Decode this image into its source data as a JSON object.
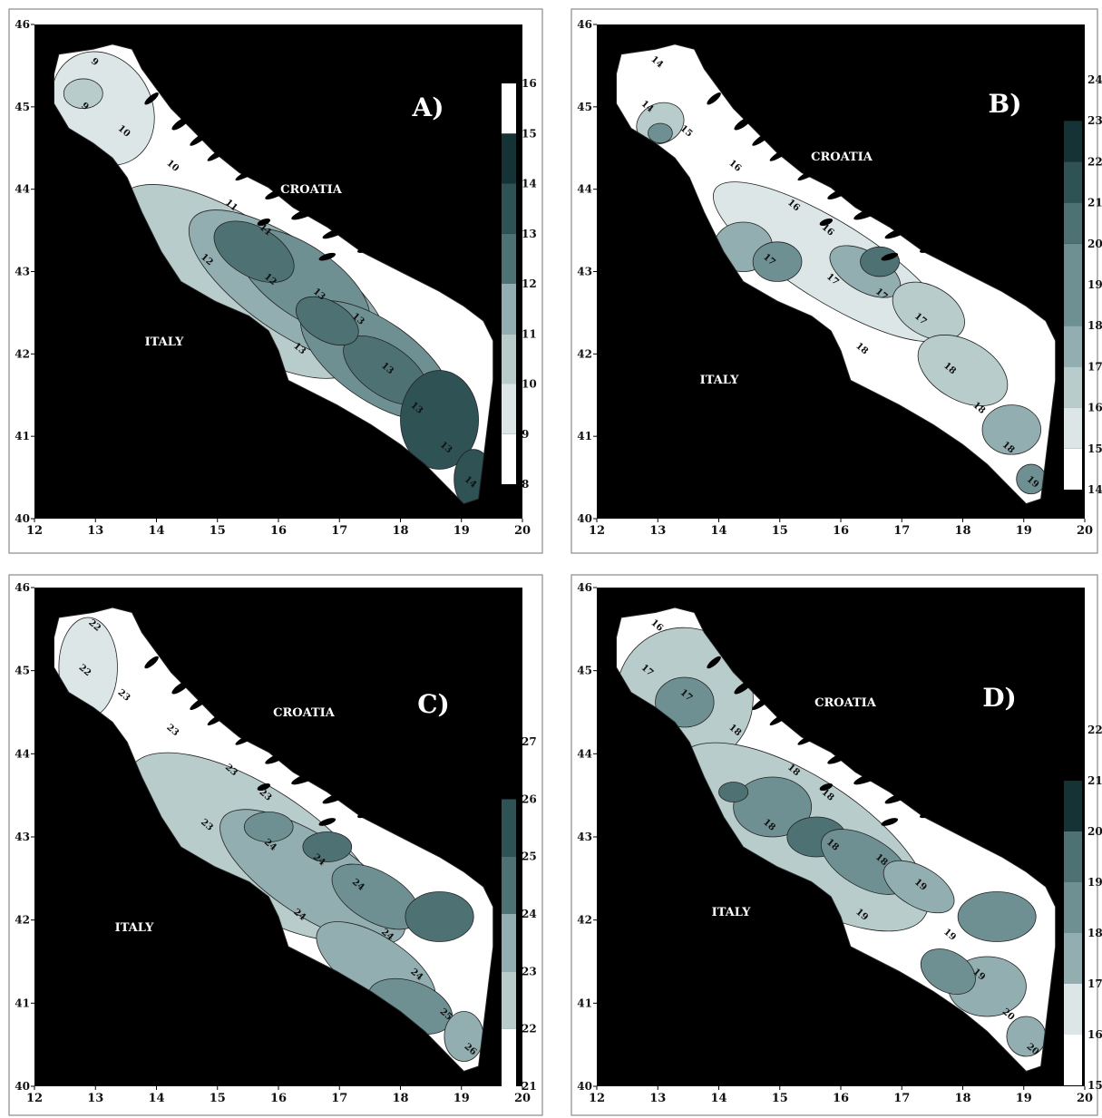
{
  "colors": {
    "land": "#000000",
    "frame": "#8a8a8a",
    "ramp": [
      "#ffffff",
      "#dce6e6",
      "#b9cccc",
      "#93aeb0",
      "#6f9093",
      "#4e7174",
      "#2f5255",
      "#153235",
      "#000000"
    ]
  },
  "x_ticks": [
    "12",
    "13",
    "14",
    "15",
    "16",
    "17",
    "18",
    "19",
    "20"
  ],
  "y_ticks": [
    "40",
    "41",
    "42",
    "43",
    "44",
    "45",
    "46"
  ],
  "panels": [
    {
      "id": "a",
      "label": "A)",
      "country_labels": {
        "croatia": "CROATIA",
        "italy": "ITALY"
      },
      "colorbar_ticks": [
        "8",
        "9",
        "10",
        "11",
        "12",
        "13",
        "14",
        "15",
        "16"
      ],
      "colorbar_note": "top value not shaded",
      "contour_labels": [
        "9",
        "9",
        "10",
        "10",
        "11",
        "11",
        "12",
        "12",
        "13",
        "13",
        "13",
        "13",
        "13",
        "13",
        "14"
      ]
    },
    {
      "id": "b",
      "label": "B)",
      "country_labels": {
        "croatia": "CROATIA",
        "italy": "ITALY"
      },
      "colorbar_ticks": [
        "14",
        "15",
        "16",
        "17",
        "18",
        "19",
        "20",
        "21",
        "22",
        "23",
        "24"
      ],
      "contour_labels": [
        "14",
        "14",
        "15",
        "16",
        "16",
        "16",
        "17",
        "17",
        "17",
        "17",
        "18",
        "18",
        "18",
        "18",
        "19"
      ]
    },
    {
      "id": "c",
      "label": "C)",
      "country_labels": {
        "croatia": "CROATIA",
        "italy": "ITALY"
      },
      "colorbar_ticks": [
        "21",
        "22",
        "23",
        "24",
        "25",
        "26",
        "27"
      ],
      "contour_labels": [
        "22",
        "22",
        "23",
        "23",
        "23",
        "23",
        "23",
        "24",
        "24",
        "24",
        "24",
        "24",
        "24",
        "25",
        "26"
      ]
    },
    {
      "id": "d",
      "label": "D)",
      "country_labels": {
        "croatia": "CROATIA",
        "italy": "ITALY"
      },
      "colorbar_ticks": [
        "15",
        "16",
        "17",
        "18",
        "19",
        "20",
        "21",
        "22"
      ],
      "contour_labels": [
        "16",
        "17",
        "17",
        "18",
        "18",
        "18",
        "18",
        "18",
        "18",
        "19",
        "19",
        "19",
        "19",
        "20",
        "20"
      ]
    }
  ]
}
